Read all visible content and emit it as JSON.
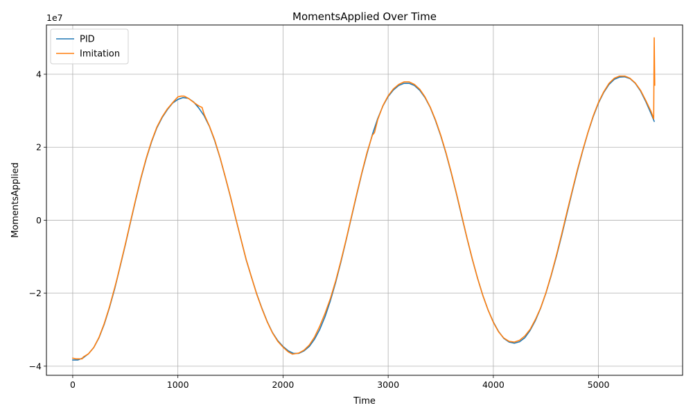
{
  "chart_data": {
    "type": "line",
    "title": "MomentsApplied Over Time",
    "xlabel": "Time",
    "ylabel": "MomentsApplied",
    "y_scale_label": "1e7",
    "xlim": [
      -250,
      5800
    ],
    "ylim": [
      -42500000,
      53500000
    ],
    "x_ticks": [
      0,
      1000,
      2000,
      3000,
      4000,
      5000
    ],
    "x_tick_labels": [
      "0",
      "1000",
      "2000",
      "3000",
      "4000",
      "5000"
    ],
    "y_ticks": [
      -40000000,
      -20000000,
      0,
      20000000,
      40000000
    ],
    "y_tick_labels": [
      "−4",
      "−2",
      "0",
      "2",
      "4"
    ],
    "grid": true,
    "legend_position": "top-left",
    "series": [
      {
        "name": "PID",
        "color": "#1f77b4",
        "points": [
          [
            0,
            -38300000
          ],
          [
            50,
            -38300000
          ],
          [
            100,
            -37700000
          ],
          [
            150,
            -36600000
          ],
          [
            200,
            -34900000
          ],
          [
            250,
            -32200000
          ],
          [
            300,
            -28500000
          ],
          [
            350,
            -23900000
          ],
          [
            400,
            -18700000
          ],
          [
            450,
            -12800000
          ],
          [
            500,
            -6800000
          ],
          [
            550,
            -500000
          ],
          [
            600,
            5700000
          ],
          [
            650,
            11600000
          ],
          [
            700,
            16900000
          ],
          [
            750,
            21500000
          ],
          [
            800,
            25300000
          ],
          [
            850,
            28100000
          ],
          [
            900,
            30300000
          ],
          [
            950,
            32100000
          ],
          [
            1000,
            33100000
          ],
          [
            1050,
            33600000
          ],
          [
            1100,
            33400000
          ],
          [
            1150,
            32400000
          ],
          [
            1200,
            30700000
          ],
          [
            1250,
            28600000
          ],
          [
            1300,
            25700000
          ],
          [
            1350,
            21800000
          ],
          [
            1400,
            17200000
          ],
          [
            1450,
            11900000
          ],
          [
            1500,
            6400000
          ],
          [
            1550,
            500000
          ],
          [
            1600,
            -5200000
          ],
          [
            1650,
            -10900000
          ],
          [
            1700,
            -15600000
          ],
          [
            1750,
            -20200000
          ],
          [
            1800,
            -24200000
          ],
          [
            1850,
            -27800000
          ],
          [
            1900,
            -30800000
          ],
          [
            1950,
            -33000000
          ],
          [
            2000,
            -34600000
          ],
          [
            2050,
            -35800000
          ],
          [
            2100,
            -36500000
          ],
          [
            2150,
            -36500000
          ],
          [
            2200,
            -35800000
          ],
          [
            2250,
            -34600000
          ],
          [
            2300,
            -32600000
          ],
          [
            2350,
            -29900000
          ],
          [
            2400,
            -26400000
          ],
          [
            2450,
            -22100000
          ],
          [
            2500,
            -17100000
          ],
          [
            2550,
            -11500000
          ],
          [
            2600,
            -5500000
          ],
          [
            2650,
            700000
          ],
          [
            2700,
            6900000
          ],
          [
            2750,
            12900000
          ],
          [
            2800,
            18400000
          ],
          [
            2850,
            23500000
          ],
          [
            2900,
            27800000
          ],
          [
            2950,
            31300000
          ],
          [
            3000,
            33900000
          ],
          [
            3050,
            35700000
          ],
          [
            3100,
            36900000
          ],
          [
            3150,
            37500000
          ],
          [
            3200,
            37500000
          ],
          [
            3250,
            36900000
          ],
          [
            3300,
            35600000
          ],
          [
            3350,
            33600000
          ],
          [
            3400,
            30900000
          ],
          [
            3450,
            27300000
          ],
          [
            3500,
            23100000
          ],
          [
            3550,
            18300000
          ],
          [
            3600,
            12900000
          ],
          [
            3650,
            7100000
          ],
          [
            3700,
            1000000
          ],
          [
            3750,
            -5000000
          ],
          [
            3800,
            -10700000
          ],
          [
            3850,
            -15900000
          ],
          [
            3900,
            -20600000
          ],
          [
            3950,
            -24600000
          ],
          [
            4000,
            -27900000
          ],
          [
            4050,
            -30500000
          ],
          [
            4100,
            -32400000
          ],
          [
            4150,
            -33400000
          ],
          [
            4200,
            -33700000
          ],
          [
            4250,
            -33300000
          ],
          [
            4300,
            -32200000
          ],
          [
            4350,
            -30200000
          ],
          [
            4400,
            -27500000
          ],
          [
            4450,
            -24100000
          ],
          [
            4500,
            -20000000
          ],
          [
            4550,
            -15200000
          ],
          [
            4600,
            -9900000
          ],
          [
            4650,
            -4200000
          ],
          [
            4700,
            1800000
          ],
          [
            4750,
            7800000
          ],
          [
            4800,
            13600000
          ],
          [
            4850,
            19000000
          ],
          [
            4900,
            24000000
          ],
          [
            4950,
            28400000
          ],
          [
            5000,
            32100000
          ],
          [
            5050,
            35000000
          ],
          [
            5100,
            37200000
          ],
          [
            5150,
            38600000
          ],
          [
            5200,
            39200000
          ],
          [
            5250,
            39300000
          ],
          [
            5300,
            38800000
          ],
          [
            5350,
            37500000
          ],
          [
            5400,
            35400000
          ],
          [
            5450,
            32500000
          ],
          [
            5500,
            29200000
          ],
          [
            5530,
            27100000
          ]
        ]
      },
      {
        "name": "Imitation",
        "color": "#ff7f0e",
        "points": [
          [
            0,
            -37800000
          ],
          [
            30,
            -38000000
          ],
          [
            60,
            -38000000
          ],
          [
            90,
            -38000000
          ],
          [
            100,
            -37500000
          ],
          [
            150,
            -36600000
          ],
          [
            200,
            -34900000
          ],
          [
            250,
            -32100000
          ],
          [
            300,
            -28300000
          ],
          [
            350,
            -23700000
          ],
          [
            400,
            -18400000
          ],
          [
            420,
            -16200000
          ],
          [
            450,
            -12600000
          ],
          [
            500,
            -6600000
          ],
          [
            550,
            -300000
          ],
          [
            600,
            5900000
          ],
          [
            650,
            11800000
          ],
          [
            700,
            17100000
          ],
          [
            750,
            21700000
          ],
          [
            800,
            25500000
          ],
          [
            850,
            28300000
          ],
          [
            900,
            30500000
          ],
          [
            950,
            32200000
          ],
          [
            1000,
            33800000
          ],
          [
            1030,
            34000000
          ],
          [
            1060,
            34000000
          ],
          [
            1100,
            33400000
          ],
          [
            1150,
            32300000
          ],
          [
            1200,
            31300000
          ],
          [
            1230,
            30900000
          ],
          [
            1250,
            29000000
          ],
          [
            1300,
            25800000
          ],
          [
            1350,
            22000000
          ],
          [
            1400,
            17300000
          ],
          [
            1450,
            12000000
          ],
          [
            1500,
            6500000
          ],
          [
            1550,
            600000
          ],
          [
            1600,
            -5200000
          ],
          [
            1650,
            -10800000
          ],
          [
            1700,
            -15600000
          ],
          [
            1750,
            -20300000
          ],
          [
            1800,
            -24300000
          ],
          [
            1850,
            -27900000
          ],
          [
            1900,
            -30900000
          ],
          [
            1950,
            -33200000
          ],
          [
            2000,
            -34800000
          ],
          [
            2050,
            -36100000
          ],
          [
            2090,
            -36700000
          ],
          [
            2150,
            -36400000
          ],
          [
            2200,
            -35600000
          ],
          [
            2250,
            -34200000
          ],
          [
            2300,
            -32000000
          ],
          [
            2350,
            -29000000
          ],
          [
            2400,
            -25500000
          ],
          [
            2450,
            -21500000
          ],
          [
            2500,
            -16700000
          ],
          [
            2550,
            -11200000
          ],
          [
            2600,
            -5300000
          ],
          [
            2650,
            900000
          ],
          [
            2700,
            7100000
          ],
          [
            2750,
            13100000
          ],
          [
            2800,
            18700000
          ],
          [
            2850,
            23300000
          ],
          [
            2870,
            24000000
          ],
          [
            2900,
            27500000
          ],
          [
            2950,
            31400000
          ],
          [
            3000,
            34100000
          ],
          [
            3050,
            36000000
          ],
          [
            3100,
            37200000
          ],
          [
            3150,
            37900000
          ],
          [
            3200,
            37900000
          ],
          [
            3250,
            37200000
          ],
          [
            3300,
            35900000
          ],
          [
            3350,
            33800000
          ],
          [
            3400,
            31000000
          ],
          [
            3450,
            27500000
          ],
          [
            3500,
            23300000
          ],
          [
            3550,
            18500000
          ],
          [
            3600,
            13100000
          ],
          [
            3650,
            7300000
          ],
          [
            3700,
            1200000
          ],
          [
            3750,
            -4900000
          ],
          [
            3800,
            -10600000
          ],
          [
            3850,
            -15900000
          ],
          [
            3900,
            -20600000
          ],
          [
            3950,
            -24600000
          ],
          [
            4000,
            -28000000
          ],
          [
            4050,
            -30600000
          ],
          [
            4100,
            -32300000
          ],
          [
            4150,
            -33200000
          ],
          [
            4200,
            -33400000
          ],
          [
            4250,
            -32900000
          ],
          [
            4300,
            -31700000
          ],
          [
            4350,
            -29900000
          ],
          [
            4400,
            -27200000
          ],
          [
            4450,
            -24000000
          ],
          [
            4500,
            -19900000
          ],
          [
            4550,
            -15000000
          ],
          [
            4600,
            -9600000
          ],
          [
            4650,
            -3800000
          ],
          [
            4700,
            2200000
          ],
          [
            4750,
            8100000
          ],
          [
            4800,
            13900000
          ],
          [
            4850,
            19200000
          ],
          [
            4900,
            24100000
          ],
          [
            4950,
            28600000
          ],
          [
            5000,
            32300000
          ],
          [
            5050,
            35200000
          ],
          [
            5100,
            37500000
          ],
          [
            5150,
            38900000
          ],
          [
            5200,
            39500000
          ],
          [
            5250,
            39500000
          ],
          [
            5300,
            38900000
          ],
          [
            5350,
            37600000
          ],
          [
            5400,
            35600000
          ],
          [
            5450,
            32800000
          ],
          [
            5500,
            29800000
          ],
          [
            5525,
            27800000
          ],
          [
            5530,
            50000000
          ],
          [
            5535,
            37000000
          ]
        ]
      }
    ]
  }
}
